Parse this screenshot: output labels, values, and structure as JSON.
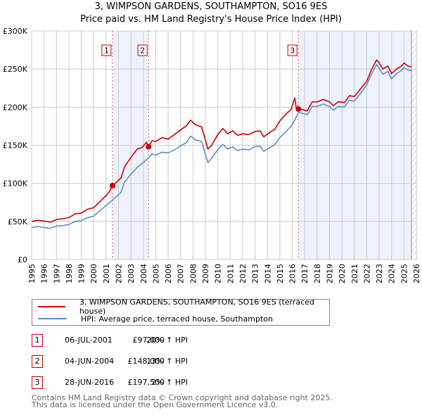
{
  "header": {
    "title": "3, WIMPSON GARDENS, SOUTHAMPTON, SO16 9ES",
    "subtitle": "Price paid vs. HM Land Registry's House Price Index (HPI)"
  },
  "colors": {
    "property": "#cc0000",
    "hpi": "#5b8fd0",
    "shade": "#eef2fc",
    "grid": "#cccccc",
    "marker_border": "#cc0000"
  },
  "chart_data": {
    "type": "line",
    "title": "3, WIMPSON GARDENS, SOUTHAMPTON, SO16 9ES",
    "subtitle": "Price paid vs. HM Land Registry's House Price Index (HPI)",
    "xlabel": "",
    "ylabel": "",
    "xlim": [
      1995,
      2026
    ],
    "ylim": [
      0,
      300000
    ],
    "grid": true,
    "legend_position": "bottom",
    "x_ticks": [
      "1995",
      "1996",
      "1997",
      "1998",
      "1999",
      "2000",
      "2001",
      "2002",
      "2003",
      "2004",
      "2005",
      "2006",
      "2007",
      "2008",
      "2009",
      "2010",
      "2011",
      "2012",
      "2013",
      "2014",
      "2015",
      "2016",
      "2017",
      "2018",
      "2019",
      "2020",
      "2021",
      "2022",
      "2023",
      "2024",
      "2025",
      "2026"
    ],
    "y_ticks": [
      {
        "value": 0,
        "label": "£0"
      },
      {
        "value": 50000,
        "label": "£50K"
      },
      {
        "value": 100000,
        "label": "£100K"
      },
      {
        "value": 150000,
        "label": "£150K"
      },
      {
        "value": 200000,
        "label": "£200K"
      },
      {
        "value": 250000,
        "label": "£250K"
      },
      {
        "value": 300000,
        "label": "£300K"
      }
    ],
    "shaded_ranges": [
      [
        2001.51,
        2004.42
      ],
      [
        2016.49,
        2025.6
      ]
    ],
    "forecast_hatch": [
      2025.6,
      2026.1
    ],
    "series": [
      {
        "name": "3, WIMPSON GARDENS, SOUTHAMPTON, SO16 9ES (terraced house)",
        "color": "#cc0000",
        "points": [
          [
            1995.0,
            50000
          ],
          [
            1995.5,
            51500
          ],
          [
            1996.0,
            50500
          ],
          [
            1996.5,
            49000
          ],
          [
            1997.0,
            52500
          ],
          [
            1997.5,
            53500
          ],
          [
            1998.0,
            55000
          ],
          [
            1998.5,
            60000
          ],
          [
            1999.0,
            61000
          ],
          [
            1999.5,
            66000
          ],
          [
            2000.0,
            68000
          ],
          [
            2000.5,
            76000
          ],
          [
            2001.0,
            84000
          ],
          [
            2001.3,
            90000
          ],
          [
            2001.5,
            97000
          ],
          [
            2001.8,
            101000
          ],
          [
            2002.2,
            107000
          ],
          [
            2002.5,
            122000
          ],
          [
            2003.0,
            134000
          ],
          [
            2003.5,
            145000
          ],
          [
            2003.9,
            147000
          ],
          [
            2004.25,
            154000
          ],
          [
            2004.42,
            148000
          ],
          [
            2004.7,
            156000
          ],
          [
            2005.0,
            155000
          ],
          [
            2005.5,
            160000
          ],
          [
            2006.0,
            158000
          ],
          [
            2006.5,
            164000
          ],
          [
            2007.0,
            170000
          ],
          [
            2007.5,
            176000
          ],
          [
            2007.8,
            183000
          ],
          [
            2008.2,
            177000
          ],
          [
            2008.7,
            174000
          ],
          [
            2009.0,
            157000
          ],
          [
            2009.2,
            145000
          ],
          [
            2009.5,
            150000
          ],
          [
            2010.0,
            164000
          ],
          [
            2010.4,
            172000
          ],
          [
            2010.8,
            165000
          ],
          [
            2011.2,
            169000
          ],
          [
            2011.6,
            163000
          ],
          [
            2012.0,
            165000
          ],
          [
            2012.5,
            164000
          ],
          [
            2013.0,
            168000
          ],
          [
            2013.4,
            169000
          ],
          [
            2013.7,
            161000
          ],
          [
            2014.2,
            167000
          ],
          [
            2014.6,
            171000
          ],
          [
            2015.0,
            182000
          ],
          [
            2015.5,
            191000
          ],
          [
            2015.9,
            197000
          ],
          [
            2016.2,
            212000
          ],
          [
            2016.35,
            196000
          ],
          [
            2016.49,
            197500
          ],
          [
            2016.8,
            197000
          ],
          [
            2017.2,
            195000
          ],
          [
            2017.6,
            207000
          ],
          [
            2018.0,
            207000
          ],
          [
            2018.5,
            210000
          ],
          [
            2019.0,
            207000
          ],
          [
            2019.3,
            202000
          ],
          [
            2019.7,
            207000
          ],
          [
            2020.2,
            206000
          ],
          [
            2020.6,
            215000
          ],
          [
            2021.0,
            214000
          ],
          [
            2021.5,
            224000
          ],
          [
            2022.0,
            234000
          ],
          [
            2022.4,
            250000
          ],
          [
            2022.8,
            262000
          ],
          [
            2023.0,
            258000
          ],
          [
            2023.3,
            250000
          ],
          [
            2023.7,
            254000
          ],
          [
            2024.0,
            244000
          ],
          [
            2024.4,
            250000
          ],
          [
            2024.8,
            254000
          ],
          [
            2025.0,
            258000
          ],
          [
            2025.3,
            254000
          ],
          [
            2025.6,
            253000
          ]
        ]
      },
      {
        "name": "HPI: Average price, terraced house, Southampton",
        "color": "#5b8fd0",
        "points": [
          [
            1995.0,
            42000
          ],
          [
            1995.5,
            43500
          ],
          [
            1996.0,
            42000
          ],
          [
            1996.5,
            41000
          ],
          [
            1997.0,
            44000
          ],
          [
            1997.5,
            44500
          ],
          [
            1998.0,
            46000
          ],
          [
            1998.5,
            50000
          ],
          [
            1999.0,
            51000
          ],
          [
            1999.5,
            55000
          ],
          [
            2000.0,
            57000
          ],
          [
            2000.5,
            64000
          ],
          [
            2001.0,
            71000
          ],
          [
            2001.3,
            75000
          ],
          [
            2001.5,
            78000
          ],
          [
            2001.8,
            82000
          ],
          [
            2002.2,
            88000
          ],
          [
            2002.5,
            102000
          ],
          [
            2003.0,
            112000
          ],
          [
            2003.5,
            121000
          ],
          [
            2003.9,
            126000
          ],
          [
            2004.25,
            131000
          ],
          [
            2004.42,
            133000
          ],
          [
            2004.7,
            139000
          ],
          [
            2005.0,
            137000
          ],
          [
            2005.5,
            141000
          ],
          [
            2006.0,
            140000
          ],
          [
            2006.5,
            144000
          ],
          [
            2007.0,
            149000
          ],
          [
            2007.5,
            154000
          ],
          [
            2007.8,
            162000
          ],
          [
            2008.2,
            157000
          ],
          [
            2008.7,
            155000
          ],
          [
            2009.0,
            138000
          ],
          [
            2009.2,
            127000
          ],
          [
            2009.5,
            133000
          ],
          [
            2010.0,
            144000
          ],
          [
            2010.4,
            151000
          ],
          [
            2010.8,
            145000
          ],
          [
            2011.2,
            148000
          ],
          [
            2011.6,
            143000
          ],
          [
            2012.0,
            145000
          ],
          [
            2012.5,
            144000
          ],
          [
            2013.0,
            148000
          ],
          [
            2013.4,
            149000
          ],
          [
            2013.7,
            142000
          ],
          [
            2014.2,
            147000
          ],
          [
            2014.6,
            151000
          ],
          [
            2015.0,
            160000
          ],
          [
            2015.5,
            168000
          ],
          [
            2015.9,
            175000
          ],
          [
            2016.2,
            183000
          ],
          [
            2016.49,
            193000
          ],
          [
            2016.8,
            192000
          ],
          [
            2017.2,
            190000
          ],
          [
            2017.6,
            201000
          ],
          [
            2018.0,
            201000
          ],
          [
            2018.5,
            204000
          ],
          [
            2019.0,
            201000
          ],
          [
            2019.3,
            196000
          ],
          [
            2019.7,
            201000
          ],
          [
            2020.2,
            200000
          ],
          [
            2020.6,
            209000
          ],
          [
            2021.0,
            208000
          ],
          [
            2021.5,
            218000
          ],
          [
            2022.0,
            229000
          ],
          [
            2022.4,
            244000
          ],
          [
            2022.8,
            256000
          ],
          [
            2023.0,
            251000
          ],
          [
            2023.3,
            243000
          ],
          [
            2023.7,
            247000
          ],
          [
            2024.0,
            237000
          ],
          [
            2024.4,
            244000
          ],
          [
            2024.8,
            248000
          ],
          [
            2025.0,
            252000
          ],
          [
            2025.3,
            249000
          ],
          [
            2025.6,
            248000
          ]
        ]
      }
    ],
    "sales": [
      {
        "label": "1",
        "x": 2001.51,
        "value": 97000
      },
      {
        "label": "2",
        "x": 2004.42,
        "value": 148000
      },
      {
        "label": "3",
        "x": 2016.49,
        "value": 197500
      }
    ]
  },
  "legend": {
    "items": [
      {
        "label": "3, WIMPSON GARDENS, SOUTHAMPTON, SO16 9ES (terraced house)",
        "color": "#cc0000"
      },
      {
        "label": "HPI: Average price, terraced house, Southampton",
        "color": "#5b8fd0"
      }
    ]
  },
  "sales_table": [
    {
      "num": "1",
      "date": "06-JUL-2001",
      "price": "£97,000",
      "hpi": "20% ↑ HPI"
    },
    {
      "num": "2",
      "date": "04-JUN-2004",
      "price": "£148,000",
      "hpi": "13% ↑ HPI"
    },
    {
      "num": "3",
      "date": "28-JUN-2016",
      "price": "£197,500",
      "hpi": "2% ↑ HPI"
    }
  ],
  "footer": {
    "line1": "Contains HM Land Registry data © Crown copyright and database right 2025.",
    "line2": "This data is licensed under the Open Government Licence v3.0."
  }
}
